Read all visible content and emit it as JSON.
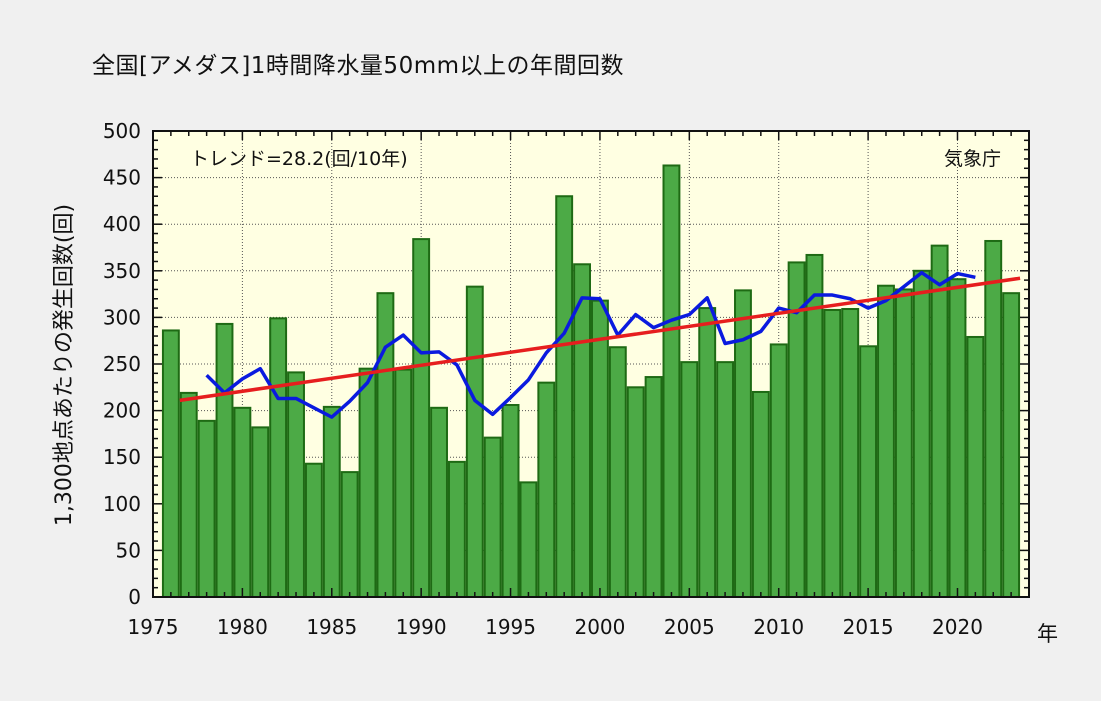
{
  "page": {
    "title": "全国[アメダス]1時間降水量50mm以上の年間回数",
    "trend_note": "トレンド=28.2(回/10年)",
    "agency": "気象庁"
  },
  "chart_data": {
    "type": "bar",
    "title": "全国[アメダス]1時間降水量50mm以上の年間回数",
    "ylabel": "1,300地点あたりの発生回数(回)",
    "xlabel": "年",
    "xlim": [
      1975,
      2024
    ],
    "ylim": [
      0,
      500
    ],
    "x_ticks": [
      1975,
      1980,
      1985,
      1990,
      1995,
      2000,
      2005,
      2010,
      2015,
      2020
    ],
    "y_ticks": [
      0,
      50,
      100,
      150,
      200,
      250,
      300,
      350,
      400,
      450,
      500
    ],
    "grid": true,
    "years": [
      1976,
      1977,
      1978,
      1979,
      1980,
      1981,
      1982,
      1983,
      1984,
      1985,
      1986,
      1987,
      1988,
      1989,
      1990,
      1991,
      1992,
      1993,
      1994,
      1995,
      1996,
      1997,
      1998,
      1999,
      2000,
      2001,
      2002,
      2003,
      2004,
      2005,
      2006,
      2007,
      2008,
      2009,
      2010,
      2011,
      2012,
      2013,
      2014,
      2015,
      2016,
      2017,
      2018,
      2019,
      2020,
      2021,
      2022,
      2023
    ],
    "values": [
      286,
      219,
      189,
      293,
      203,
      182,
      299,
      241,
      143,
      204,
      134,
      245,
      326,
      244,
      384,
      203,
      145,
      333,
      171,
      206,
      123,
      230,
      430,
      357,
      318,
      268,
      225,
      236,
      463,
      252,
      310,
      252,
      329,
      220,
      271,
      359,
      367,
      308,
      309,
      269,
      334,
      330,
      350,
      377,
      341,
      279,
      382,
      326
    ],
    "moving_average": {
      "years": [
        1978,
        1979,
        1980,
        1981,
        1982,
        1983,
        1984,
        1985,
        1986,
        1987,
        1988,
        1989,
        1990,
        1991,
        1992,
        1993,
        1994,
        1995,
        1996,
        1997,
        1998,
        1999,
        2000,
        2001,
        2002,
        2003,
        2004,
        2005,
        2006,
        2007,
        2008,
        2009,
        2010,
        2011,
        2012,
        2013,
        2014,
        2015,
        2016,
        2017,
        2018,
        2019,
        2020,
        2021
      ],
      "values": [
        238,
        219,
        234,
        245,
        213,
        213,
        203,
        193,
        210,
        230,
        268,
        281,
        262,
        263,
        249,
        211,
        196,
        214,
        233,
        262,
        283,
        321,
        320,
        281,
        303,
        289,
        297,
        303,
        321,
        272,
        276,
        285,
        310,
        305,
        324,
        324,
        320,
        310,
        318,
        333,
        348,
        335,
        347,
        343
      ]
    },
    "trend": {
      "x": [
        1976.5,
        2023.5
      ],
      "y": [
        211,
        342
      ]
    },
    "colors": {
      "plot_background": "#ffffe2",
      "bar_fill": "#4caa46",
      "bar_edge": "#1e6a14",
      "moving_average": "#0a1adf",
      "trend": "#e61e1e"
    }
  }
}
